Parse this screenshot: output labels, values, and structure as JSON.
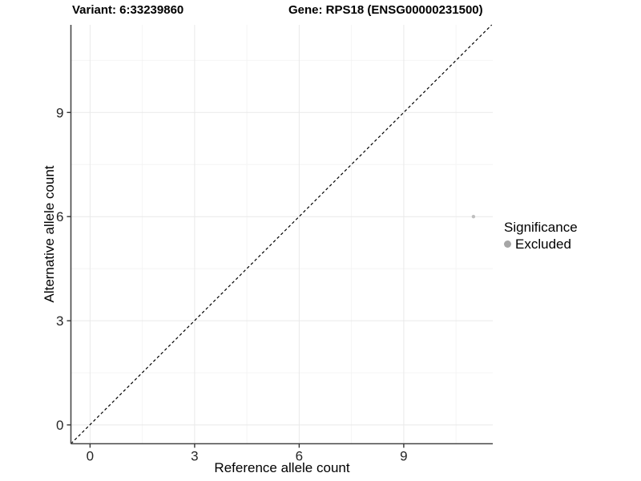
{
  "figure": {
    "title_left": "Variant: 6:33239860",
    "title_right": "Gene: RPS18 (ENSG00000231500)"
  },
  "chart_data": {
    "type": "scatter",
    "xlabel": "Reference allele count",
    "ylabel": "Alternative allele count",
    "x_ticks": [
      0,
      3,
      6,
      9
    ],
    "y_ticks": [
      0,
      3,
      6,
      9
    ],
    "x_minor_ticks": [
      1.5,
      4.5,
      7.5,
      10.5
    ],
    "y_minor_ticks": [
      1.5,
      4.5,
      7.5,
      10.5
    ],
    "xlim": [
      -0.55,
      11.55
    ],
    "ylim": [
      -0.55,
      11.55
    ],
    "grid": true,
    "series": [
      {
        "name": "Excluded",
        "color": "#bfbfbf",
        "point_radius": 2.2,
        "points": [
          {
            "x": 11,
            "y": 6
          }
        ]
      }
    ],
    "reference_line": {
      "kind": "identity y=x",
      "style": "dashed",
      "color": "#000000"
    },
    "legend": {
      "title": "Significance",
      "position": "right",
      "items": [
        {
          "label": "Excluded",
          "color": "#a6a6a6"
        }
      ]
    }
  },
  "colors": {
    "background": "#ffffff",
    "grid_major": "#e9e9e9",
    "grid_minor": "#f4f4f4",
    "axis_line": "#474747",
    "tick_mark": "#333333",
    "tick_label": "#262626"
  }
}
